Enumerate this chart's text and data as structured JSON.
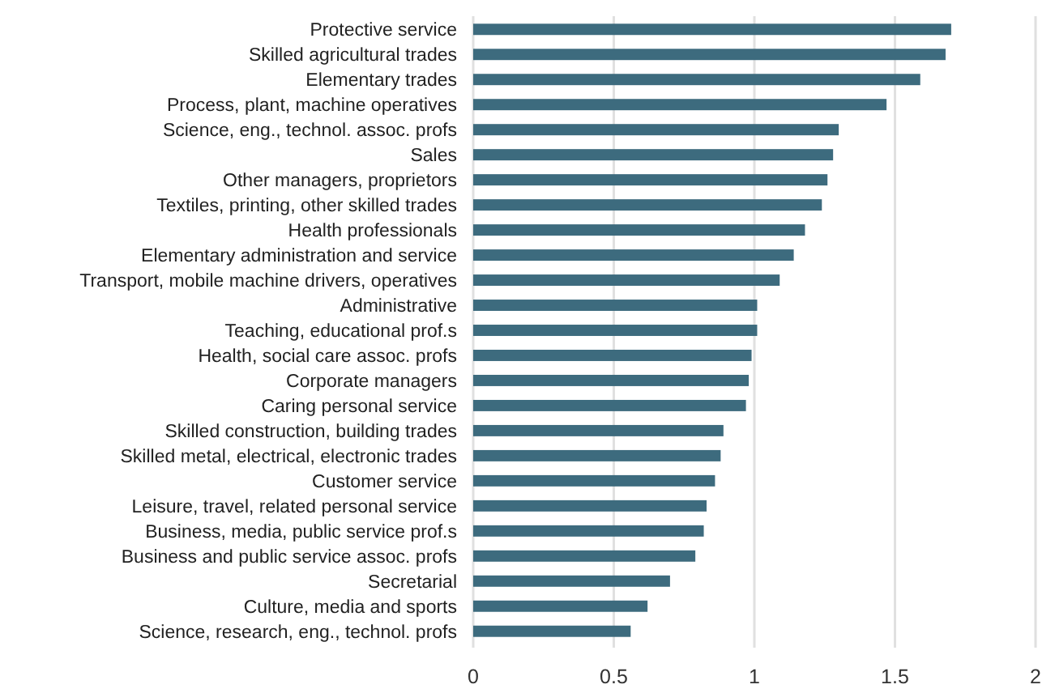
{
  "chart_data": {
    "type": "bar",
    "orientation": "horizontal",
    "categories": [
      "Protective service",
      "Skilled agricultural trades",
      "Elementary trades",
      "Process, plant, machine operatives",
      "Science, eng., technol. assoc. profs",
      "Sales",
      "Other managers, proprietors",
      "Textiles, printing, other skilled trades",
      "Health professionals",
      "Elementary administration and service",
      "Transport, mobile machine drivers, operatives",
      "Administrative",
      "Teaching, educational prof.s",
      "Health, social care assoc. profs",
      "Corporate managers",
      "Caring personal service",
      "Skilled construction, building trades",
      "Skilled metal, electrical, electronic trades",
      "Customer service",
      "Leisure, travel, related personal service",
      "Business, media, public service prof.s",
      "Business and public service assoc. profs",
      "Secretarial",
      "Culture, media and sports",
      "Science, research, eng., technol. profs"
    ],
    "values": [
      1.7,
      1.68,
      1.59,
      1.47,
      1.3,
      1.28,
      1.26,
      1.24,
      1.18,
      1.14,
      1.09,
      1.01,
      1.01,
      0.99,
      0.98,
      0.97,
      0.89,
      0.88,
      0.86,
      0.83,
      0.82,
      0.79,
      0.7,
      0.62,
      0.56
    ],
    "color": "#3d6b7e",
    "xlim": [
      0,
      2
    ],
    "xticks": [
      0,
      0.5,
      1,
      1.5,
      2
    ],
    "grid": "x"
  }
}
